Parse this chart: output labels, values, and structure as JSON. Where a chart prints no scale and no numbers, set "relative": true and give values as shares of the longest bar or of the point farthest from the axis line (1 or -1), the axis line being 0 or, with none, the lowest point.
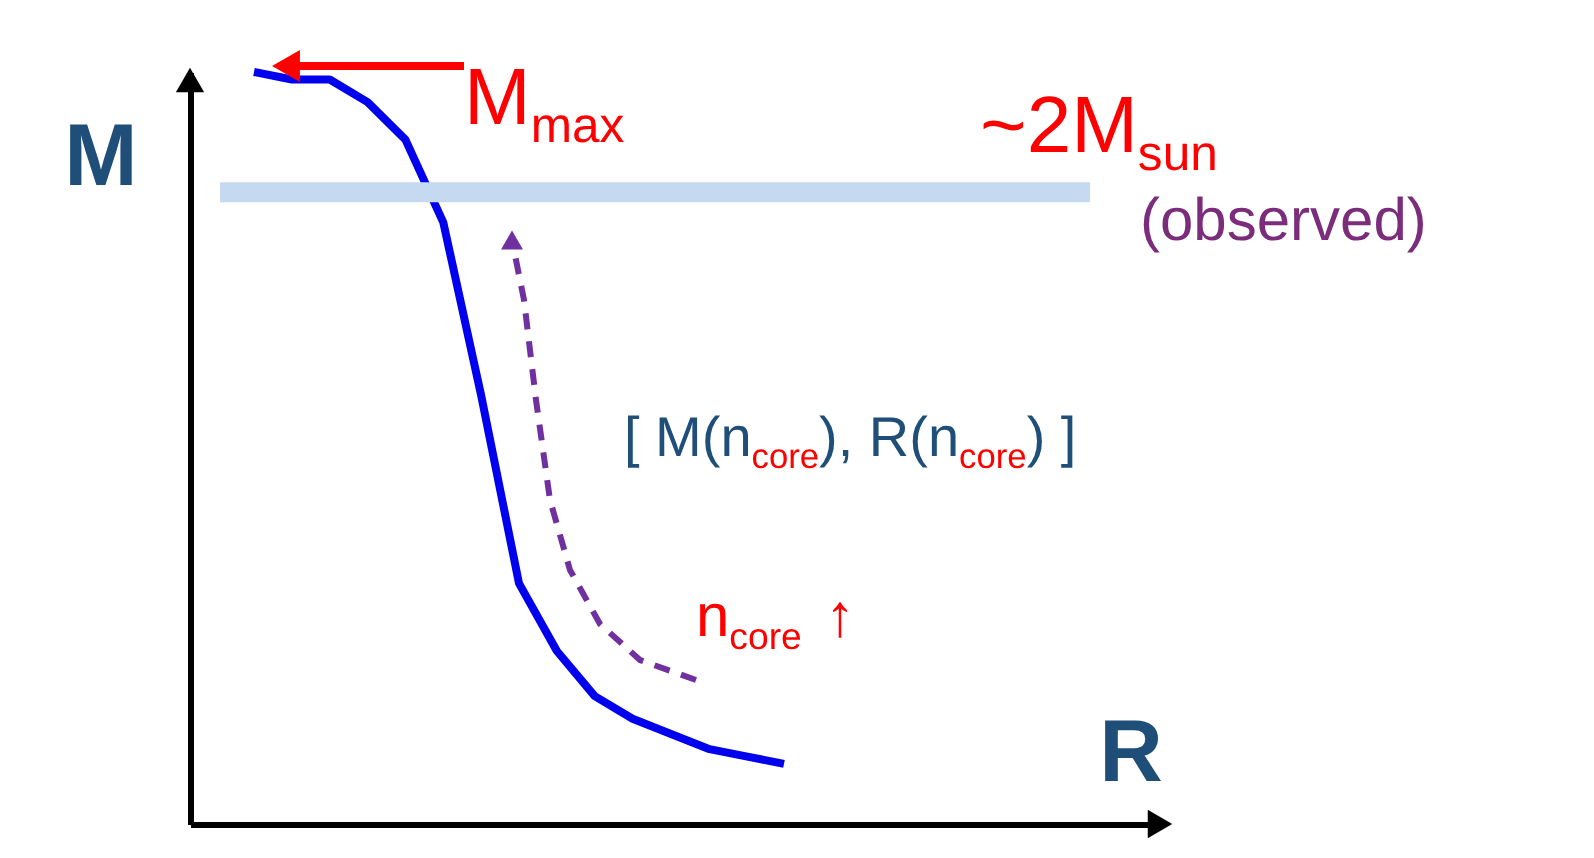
{
  "chart_data": {
    "type": "line",
    "relative": true,
    "categories": [
      null,
      null,
      null,
      null,
      null,
      null,
      null,
      null,
      null,
      null,
      null,
      null,
      null,
      null,
      null
    ],
    "values": [
      1,
      0.99,
      0.99,
      0.96,
      0.91,
      0.8,
      0.57,
      0.32,
      0.23,
      0.17,
      0.14,
      0.12,
      0.1,
      0.09,
      0.08
    ],
    "color": "#0000ee",
    "xlabel": "R",
    "ylabel": "M",
    "ref_lines": [
      {
        "axis": "y",
        "value": 0.84,
        "label": "~2M$_{sun}$",
        "color": "#c5d9f1"
      }
    ],
    "annotations": [
      "M$_{max}$",
      "(observed)",
      "[ M(n$_{core}$), R(n$_{core}$) ]",
      "n$_{core}$ ↑"
    ]
  }
}
